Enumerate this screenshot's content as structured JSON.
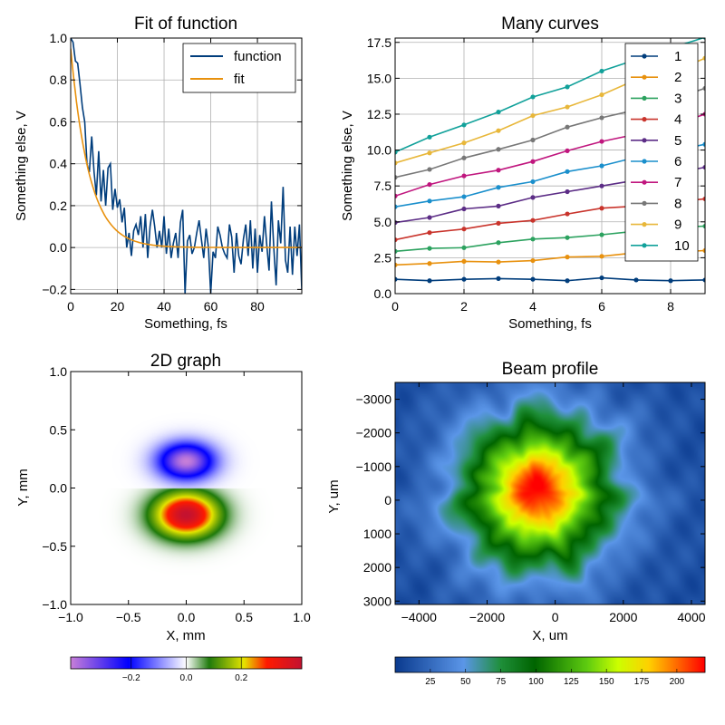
{
  "chart_data": [
    {
      "id": "fit",
      "type": "line",
      "title": "Fit of function",
      "xlabel": "Something, fs",
      "ylabel": "Something else, V",
      "xlim": [
        0,
        99
      ],
      "ylim": [
        -0.22,
        1.0
      ],
      "xticks": [
        "0",
        "20",
        "40",
        "60",
        "80"
      ],
      "xtick_values": [
        0,
        20,
        40,
        60,
        80
      ],
      "yticks": [
        "−0.2",
        "0.0",
        "0.2",
        "0.4",
        "0.6",
        "0.8",
        "1.0"
      ],
      "ytick_values": [
        -0.2,
        0,
        0.2,
        0.4,
        0.6,
        0.8,
        1.0
      ],
      "grid": true,
      "legend": "top-right",
      "series": [
        {
          "name": "function",
          "color": "#003d7c",
          "x_start": 0,
          "x_step": 1,
          "values": [
            1.0,
            0.98,
            0.89,
            0.88,
            0.78,
            0.67,
            0.6,
            0.4,
            0.36,
            0.53,
            0.36,
            0.25,
            0.46,
            0.22,
            0.37,
            0.2,
            0.38,
            0.4,
            0.18,
            0.28,
            0.19,
            0.23,
            0.12,
            0.19,
            0.0,
            0.07,
            -0.04,
            0.08,
            0.11,
            0.06,
            0.15,
            0.0,
            0.16,
            -0.05,
            0.1,
            0.18,
            0.1,
            0.0,
            0.08,
            0.0,
            0.15,
            -0.03,
            0.09,
            -0.05,
            0.02,
            0.07,
            -0.05,
            0.12,
            0.18,
            -0.22,
            0.03,
            0.06,
            -0.03,
            0.0,
            0.07,
            0.13,
            0.04,
            -0.05,
            0.09,
            0.0,
            -0.22,
            -0.02,
            -0.05,
            0.1,
            0.06,
            0.0,
            -0.03,
            -0.05,
            0.11,
            0.05,
            -0.12,
            0.07,
            -0.04,
            -0.08,
            0.04,
            0.11,
            -0.04,
            0.13,
            -0.1,
            0.09,
            -0.12,
            0.06,
            -0.02,
            0.15,
            0.01,
            -0.11,
            0.22,
            0.0,
            -0.18,
            0.13,
            0.02,
            0.29,
            -0.06,
            -0.12,
            0.1,
            -0.13,
            0.1,
            -0.04,
            0.11,
            -0.2
          ]
        },
        {
          "name": "fit",
          "color": "#e8910e",
          "model": "exp",
          "amplitude": 0.95,
          "decay": 8
        }
      ]
    },
    {
      "id": "curves",
      "type": "line",
      "title": "Many curves",
      "xlabel": "Something, fs",
      "ylabel": "Something else, V",
      "xlim": [
        0,
        9
      ],
      "ylim": [
        0,
        17.8
      ],
      "xticks": [
        "0",
        "2",
        "4",
        "6",
        "8"
      ],
      "xtick_values": [
        0,
        2,
        4,
        6,
        8
      ],
      "yticks": [
        "0.0",
        "2.5",
        "5.0",
        "7.5",
        "10.0",
        "12.5",
        "15.0",
        "17.5"
      ],
      "ytick_values": [
        0,
        2.5,
        5,
        7.5,
        10,
        12.5,
        15,
        17.5
      ],
      "grid": true,
      "legend": "top-right",
      "x": [
        0,
        1,
        2,
        3,
        4,
        5,
        6,
        7,
        8,
        9
      ],
      "series": [
        {
          "name": "1",
          "color": "#003d7c",
          "values": [
            1.0,
            0.9,
            1.0,
            1.05,
            1.0,
            0.9,
            1.1,
            0.95,
            0.9,
            0.95
          ]
        },
        {
          "name": "2",
          "color": "#e8910e",
          "values": [
            2.0,
            2.1,
            2.25,
            2.2,
            2.3,
            2.55,
            2.6,
            2.85,
            2.9,
            3.0
          ]
        },
        {
          "name": "3",
          "color": "#2ca25f",
          "values": [
            2.95,
            3.15,
            3.2,
            3.55,
            3.8,
            3.9,
            4.1,
            4.35,
            4.6,
            4.7
          ]
        },
        {
          "name": "4",
          "color": "#c9342c",
          "values": [
            3.75,
            4.25,
            4.5,
            4.9,
            5.1,
            5.55,
            5.95,
            6.1,
            6.35,
            6.6
          ]
        },
        {
          "name": "5",
          "color": "#5c2d86",
          "values": [
            4.95,
            5.3,
            5.9,
            6.1,
            6.7,
            7.1,
            7.5,
            7.9,
            8.35,
            8.8
          ]
        },
        {
          "name": "6",
          "color": "#1a8fcc",
          "values": [
            6.05,
            6.45,
            6.75,
            7.4,
            7.8,
            8.5,
            8.9,
            9.5,
            9.9,
            10.4
          ]
        },
        {
          "name": "7",
          "color": "#c0167e",
          "values": [
            6.8,
            7.6,
            8.2,
            8.6,
            9.2,
            9.95,
            10.6,
            11.1,
            11.7,
            12.5
          ]
        },
        {
          "name": "8",
          "color": "#777777",
          "values": [
            8.1,
            8.65,
            9.45,
            10.05,
            10.7,
            11.6,
            12.25,
            12.8,
            13.5,
            14.3
          ]
        },
        {
          "name": "9",
          "color": "#e8b73a",
          "values": [
            9.1,
            9.8,
            10.5,
            11.35,
            12.4,
            13.0,
            13.85,
            14.9,
            15.4,
            16.4
          ]
        },
        {
          "name": "10",
          "color": "#11a19a",
          "values": [
            9.85,
            10.9,
            11.75,
            12.65,
            13.7,
            14.4,
            15.5,
            16.3,
            17.1,
            17.85
          ]
        }
      ]
    },
    {
      "id": "graph2d",
      "type": "heatmap",
      "title": "2D graph",
      "xlabel": "X, mm",
      "ylabel": "Y, mm",
      "xlim": [
        -1.0,
        1.0
      ],
      "ylim": [
        -1.0,
        1.0
      ],
      "xticks": [
        "−1.0",
        "−0.5",
        "0.0",
        "0.5",
        "1.0"
      ],
      "xtick_values": [
        -1.0,
        -0.5,
        0.0,
        0.5,
        1.0
      ],
      "yticks": [
        "−1.0",
        "−0.5",
        "0.0",
        "0.5",
        "1.0"
      ],
      "ytick_values": [
        -1.0,
        -0.5,
        0.0,
        0.5,
        1.0
      ],
      "model": "dipole",
      "zrange": [
        -0.42,
        0.42
      ],
      "colorbar_ticks": [
        "−0.2",
        "0.0",
        "0.2"
      ],
      "colorbar_tick_values": [
        -0.2,
        0.0,
        0.2
      ],
      "colormap": [
        [
          0.0,
          "#c77fd9"
        ],
        [
          0.25,
          "#0000ff"
        ],
        [
          0.5,
          "#ffffff"
        ],
        [
          0.6,
          "#1f7a0c"
        ],
        [
          0.75,
          "#e5e500"
        ],
        [
          0.85,
          "#ff1a00"
        ],
        [
          1.0,
          "#c41230"
        ]
      ]
    },
    {
      "id": "beam",
      "type": "heatmap",
      "title": "Beam profile",
      "xlabel": "X, um",
      "ylabel": "Y, um",
      "xlim": [
        -4700,
        4400
      ],
      "ylim": [
        3100,
        -3500
      ],
      "xticks": [
        "−4000",
        "−2000",
        "0",
        "2000",
        "4000"
      ],
      "xtick_values": [
        -4000,
        -2000,
        0,
        2000,
        4000
      ],
      "yticks": [
        "−3000",
        "−2000",
        "−1000",
        "0",
        "1000",
        "2000",
        "3000"
      ],
      "ytick_values": [
        -3000,
        -2000,
        -1000,
        0,
        1000,
        2000,
        3000
      ],
      "model": "gaussian-beam",
      "zrange": [
        0,
        220
      ],
      "colorbar_ticks": [
        "25",
        "50",
        "75",
        "100",
        "125",
        "150",
        "175",
        "200"
      ],
      "colorbar_tick_values": [
        25,
        50,
        75,
        100,
        125,
        150,
        175,
        200
      ],
      "colormap": [
        [
          0.0,
          "#0b3b8f"
        ],
        [
          0.22,
          "#5b96e8"
        ],
        [
          0.34,
          "#1f8f3a"
        ],
        [
          0.45,
          "#006400"
        ],
        [
          0.62,
          "#5fcc10"
        ],
        [
          0.72,
          "#ccff00"
        ],
        [
          0.82,
          "#ffd000"
        ],
        [
          0.91,
          "#ff6a00"
        ],
        [
          1.0,
          "#ff0000"
        ]
      ]
    }
  ]
}
